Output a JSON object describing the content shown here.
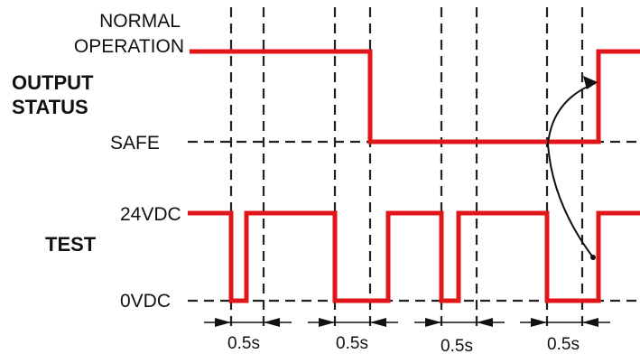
{
  "labels": {
    "normal_line1": "NORMAL",
    "normal_line2": "OPERATION",
    "output_line1": "OUTPUT",
    "output_line2": "STATUS",
    "safe": "SAFE",
    "v24": "24VDC",
    "test": "TEST",
    "v0": "0VDC"
  },
  "durations": [
    "0.5s",
    "0.5s",
    "0.5s",
    "0.5s"
  ],
  "colors": {
    "signal": "#e0161b",
    "guide": "#222222",
    "text": "#111111"
  }
}
